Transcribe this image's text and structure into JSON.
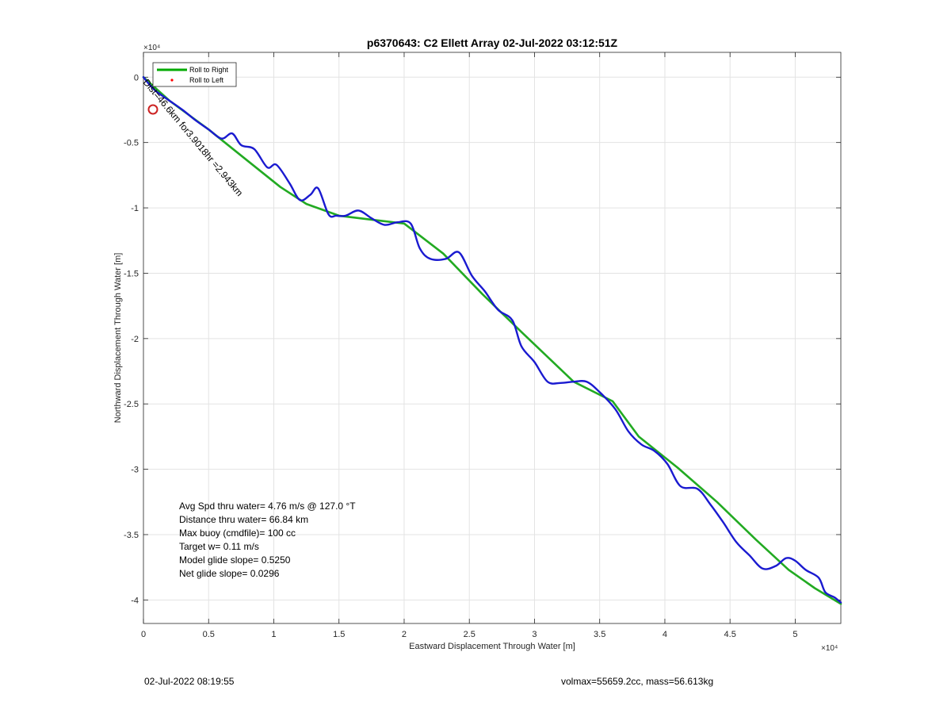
{
  "chart_data": {
    "type": "line",
    "title": "p6370643: C2 Ellett Array 02-Jul-2022 03:12:51Z",
    "xlabel": "Eastward Displacement Through Water [m]",
    "ylabel": "Northward Displacement Through Water [m]",
    "x_exponent_label": "×10⁴",
    "y_exponent_label": "×10⁴",
    "xlim": [
      0,
      53500
    ],
    "ylim": [
      -41800,
      1900
    ],
    "grid": true,
    "x_ticks": [
      {
        "value": 0,
        "label": "0"
      },
      {
        "value": 5000,
        "label": "0.5"
      },
      {
        "value": 10000,
        "label": "1"
      },
      {
        "value": 15000,
        "label": "1.5"
      },
      {
        "value": 20000,
        "label": "2"
      },
      {
        "value": 25000,
        "label": "2.5"
      },
      {
        "value": 30000,
        "label": "3"
      },
      {
        "value": 35000,
        "label": "3.5"
      },
      {
        "value": 40000,
        "label": "4"
      },
      {
        "value": 45000,
        "label": "4.5"
      },
      {
        "value": 50000,
        "label": "5"
      }
    ],
    "y_ticks": [
      {
        "value": 0,
        "label": "0"
      },
      {
        "value": -5000,
        "label": "-0.5"
      },
      {
        "value": -10000,
        "label": "-1"
      },
      {
        "value": -15000,
        "label": "-1.5"
      },
      {
        "value": -20000,
        "label": "-2"
      },
      {
        "value": -25000,
        "label": "-2.5"
      },
      {
        "value": -30000,
        "label": "-3"
      },
      {
        "value": -35000,
        "label": "-3.5"
      },
      {
        "value": -40000,
        "label": "-4"
      }
    ],
    "legend": {
      "placement": "top-left",
      "entries": [
        {
          "label": "Roll to Right",
          "color": "#00aa00",
          "marker": "line"
        },
        {
          "label": "Roll to Left",
          "color": "#ff0000",
          "marker": "dot"
        }
      ]
    },
    "series": [
      {
        "name": "Roll to Right",
        "color": "#22aa22",
        "x": [
          0,
          2000,
          5000,
          8000,
          10500,
          12500,
          15000,
          17500,
          20000,
          23000,
          26000,
          29000,
          33000,
          36000,
          38000,
          41000,
          44000,
          47000,
          49500,
          51500,
          53500
        ],
        "y": [
          0,
          -1800,
          -4000,
          -6400,
          -8400,
          -9700,
          -10600,
          -10900,
          -11200,
          -13500,
          -16600,
          -19500,
          -23300,
          -24800,
          -27500,
          -29900,
          -32500,
          -35400,
          -37700,
          -39100,
          -40300
        ]
      },
      {
        "name": "",
        "color": "#1a1ad0",
        "x": [
          0,
          500,
          1000,
          2000,
          3000,
          4000,
          5000,
          6000,
          6800,
          7500,
          8500,
          9500,
          10200,
          11200,
          12000,
          12800,
          13400,
          14200,
          14800,
          15500,
          16500,
          17500,
          18500,
          19500,
          20500,
          21200,
          22000,
          23200,
          24200,
          25200,
          26200,
          27200,
          28300,
          29000,
          30000,
          31000,
          32000,
          33000,
          34000,
          35000,
          36200,
          37200,
          38200,
          39200,
          40200,
          41200,
          42500,
          43500,
          44500,
          45500,
          46500,
          47500,
          48500,
          49300,
          50000,
          50800,
          51800,
          52300,
          53000,
          53500
        ],
        "y": [
          0,
          -600,
          -1100,
          -1800,
          -2500,
          -3300,
          -4000,
          -4700,
          -4300,
          -5200,
          -5500,
          -6900,
          -6700,
          -8100,
          -9400,
          -9000,
          -8500,
          -10500,
          -10600,
          -10600,
          -10200,
          -10800,
          -11300,
          -11100,
          -11200,
          -13100,
          -13900,
          -13900,
          -13400,
          -15200,
          -16400,
          -17800,
          -18600,
          -20600,
          -21800,
          -23300,
          -23400,
          -23300,
          -23300,
          -24100,
          -25400,
          -27100,
          -28100,
          -28600,
          -29600,
          -31300,
          -31500,
          -32700,
          -34100,
          -35600,
          -36600,
          -37600,
          -37400,
          -36800,
          -37000,
          -37700,
          -38300,
          -39400,
          -39800,
          -40200
        ]
      }
    ],
    "annotations": {
      "start_label": "Dist=46.6km for3.9018hr =2.943km",
      "stats": [
        "Avg Spd thru water=  4.76 m/s @ 127.0 °T",
        "Distance thru water= 66.84 km",
        "Max buoy (cmdfile)= 100 cc",
        "Target w= 0.11 m/s",
        "Model glide slope= 0.5250",
        "Net glide slope= 0.0296"
      ]
    }
  },
  "footer": {
    "date": "02-Jul-2022 08:19:55",
    "volmax": "volmax=55659.2cc, mass=56.613kg"
  }
}
